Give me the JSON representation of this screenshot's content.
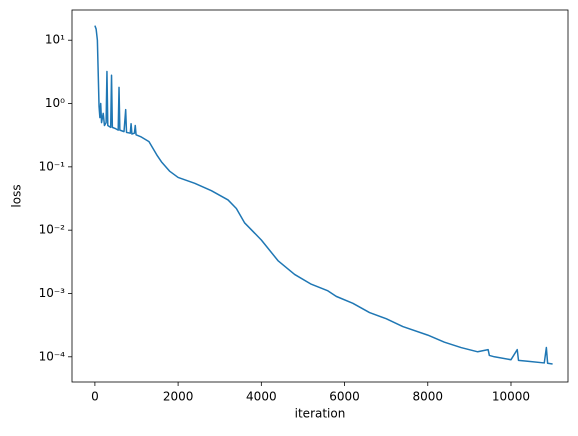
{
  "chart_data": {
    "type": "line",
    "xlabel": "iteration",
    "ylabel": "loss",
    "x": [
      0,
      30,
      60,
      100,
      120,
      140,
      160,
      200,
      230,
      270,
      290,
      310,
      380,
      400,
      420,
      500,
      560,
      580,
      600,
      700,
      740,
      760,
      850,
      870,
      890,
      950,
      970,
      990,
      1100,
      1300,
      1500,
      1600,
      1800,
      2000,
      2400,
      2800,
      3200,
      3400,
      3600,
      4000,
      4400,
      4800,
      5200,
      5600,
      5800,
      6200,
      6600,
      7000,
      7400,
      8000,
      8400,
      8800,
      9200,
      9450,
      9480,
      9600,
      10000,
      10150,
      10180,
      10400,
      10800,
      10850,
      10880,
      11000
    ],
    "values": [
      17,
      15,
      10,
      0.9,
      0.6,
      1.0,
      0.5,
      0.7,
      0.45,
      0.5,
      3.2,
      0.45,
      0.42,
      2.8,
      0.42,
      0.4,
      0.38,
      1.8,
      0.38,
      0.36,
      0.8,
      0.35,
      0.34,
      0.48,
      0.33,
      0.34,
      0.45,
      0.32,
      0.3,
      0.25,
      0.15,
      0.12,
      0.085,
      0.068,
      0.055,
      0.042,
      0.03,
      0.022,
      0.013,
      0.007,
      0.0033,
      0.002,
      0.0014,
      0.0011,
      0.0009,
      0.0007,
      0.0005,
      0.0004,
      0.0003,
      0.00022,
      0.00017,
      0.00014,
      0.00012,
      0.00013,
      0.000105,
      0.0001,
      9e-05,
      0.00013,
      8.8e-05,
      8.5e-05,
      8e-05,
      0.00014,
      7.9e-05,
      7.7e-05
    ],
    "color": "#1f77b4",
    "xlim": [
      -550,
      11370
    ],
    "xticks": [
      0,
      2000,
      4000,
      6000,
      8000,
      10000
    ],
    "ylim": [
      4e-05,
      30
    ],
    "log_y": true,
    "yticks": [
      {
        "value": 0.0001,
        "label": "10⁻⁴"
      },
      {
        "value": 0.001,
        "label": "10⁻³"
      },
      {
        "value": 0.01,
        "label": "10⁻²"
      },
      {
        "value": 0.1,
        "label": "10⁻¹"
      },
      {
        "value": 1,
        "label": "10⁰"
      },
      {
        "value": 10,
        "label": "10¹"
      }
    ]
  }
}
